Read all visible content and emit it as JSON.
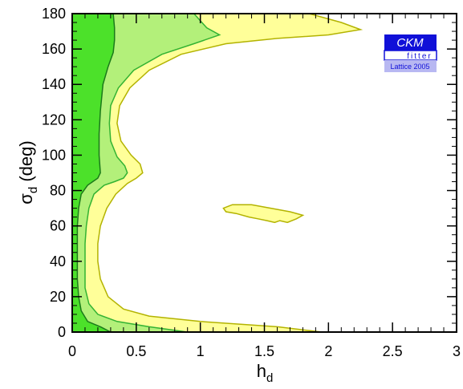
{
  "chart_data": {
    "type": "contour",
    "xlabel_main": "h",
    "xlabel_sub": "d",
    "ylabel_main": "σ",
    "ylabel_sub": "d",
    "ylabel_unit": "(deg)",
    "xlim": [
      0,
      3
    ],
    "ylim": [
      0,
      180
    ],
    "xticks": [
      0,
      0.5,
      1,
      1.5,
      2,
      2.5,
      3
    ],
    "xtick_labels": [
      "0",
      "0.5",
      "1",
      "1.5",
      "2",
      "2.5",
      "3"
    ],
    "yticks": [
      0,
      20,
      40,
      60,
      80,
      100,
      120,
      140,
      160,
      180
    ],
    "ytick_labels": [
      "0",
      "20",
      "40",
      "60",
      "80",
      "100",
      "120",
      "140",
      "160",
      "180"
    ],
    "colors": {
      "outer": "#ffff99",
      "middle": "#b3f07a",
      "inner": "#4ce12a",
      "outer_line": "#b3b300",
      "middle_line": "#33b333",
      "inner_line": "#1a7a1a"
    },
    "regions": [
      {
        "level": "outer",
        "points": [
          [
            0,
            0
          ],
          [
            1.95,
            0
          ],
          [
            1.6,
            3
          ],
          [
            1.0,
            6
          ],
          [
            0.6,
            9
          ],
          [
            0.4,
            13
          ],
          [
            0.28,
            20
          ],
          [
            0.22,
            30
          ],
          [
            0.2,
            40
          ],
          [
            0.2,
            50
          ],
          [
            0.22,
            60
          ],
          [
            0.27,
            70
          ],
          [
            0.34,
            78
          ],
          [
            0.43,
            84
          ],
          [
            0.5,
            87
          ],
          [
            0.55,
            90
          ],
          [
            0.53,
            95
          ],
          [
            0.46,
            100
          ],
          [
            0.38,
            108
          ],
          [
            0.35,
            118
          ],
          [
            0.37,
            128
          ],
          [
            0.45,
            138
          ],
          [
            0.6,
            148
          ],
          [
            0.85,
            157
          ],
          [
            1.2,
            163
          ],
          [
            1.6,
            166
          ],
          [
            2.0,
            168
          ],
          [
            2.25,
            171
          ],
          [
            2.1,
            175
          ],
          [
            1.85,
            180
          ],
          [
            0,
            180
          ]
        ]
      },
      {
        "level": "middle",
        "points": [
          [
            0,
            0
          ],
          [
            0.9,
            0
          ],
          [
            0.6,
            3
          ],
          [
            0.35,
            6
          ],
          [
            0.2,
            10
          ],
          [
            0.13,
            16
          ],
          [
            0.1,
            25
          ],
          [
            0.1,
            35
          ],
          [
            0.1,
            50
          ],
          [
            0.11,
            60
          ],
          [
            0.13,
            70
          ],
          [
            0.17,
            78
          ],
          [
            0.25,
            83
          ],
          [
            0.33,
            85
          ],
          [
            0.4,
            87
          ],
          [
            0.43,
            90
          ],
          [
            0.41,
            94
          ],
          [
            0.35,
            99
          ],
          [
            0.3,
            108
          ],
          [
            0.29,
            118
          ],
          [
            0.3,
            128
          ],
          [
            0.36,
            138
          ],
          [
            0.48,
            148
          ],
          [
            0.7,
            157
          ],
          [
            0.95,
            163
          ],
          [
            1.15,
            168
          ],
          [
            1.05,
            172
          ],
          [
            0.95,
            180
          ],
          [
            0,
            180
          ]
        ]
      },
      {
        "level": "inner",
        "points": [
          [
            0,
            0
          ],
          [
            0.3,
            0
          ],
          [
            0.22,
            3
          ],
          [
            0.12,
            6
          ],
          [
            0.07,
            12
          ],
          [
            0.05,
            20
          ],
          [
            0.04,
            30
          ],
          [
            0.04,
            45
          ],
          [
            0.04,
            60
          ],
          [
            0.05,
            70
          ],
          [
            0.07,
            78
          ],
          [
            0.12,
            83
          ],
          [
            0.2,
            87
          ],
          [
            0.22,
            90
          ],
          [
            0.21,
            100
          ],
          [
            0.21,
            112
          ],
          [
            0.22,
            125
          ],
          [
            0.24,
            140
          ],
          [
            0.28,
            150
          ],
          [
            0.32,
            158
          ],
          [
            0.33,
            165
          ],
          [
            0.33,
            172
          ],
          [
            0.32,
            180
          ],
          [
            0,
            180
          ]
        ]
      },
      {
        "level": "outer",
        "points": [
          [
            1.18,
            70
          ],
          [
            1.25,
            72
          ],
          [
            1.4,
            72
          ],
          [
            1.55,
            70
          ],
          [
            1.7,
            68
          ],
          [
            1.8,
            66
          ],
          [
            1.75,
            64
          ],
          [
            1.68,
            62
          ],
          [
            1.62,
            63
          ],
          [
            1.58,
            62
          ],
          [
            1.52,
            63
          ],
          [
            1.45,
            64
          ],
          [
            1.38,
            65
          ],
          [
            1.28,
            67
          ],
          [
            1.2,
            68
          ]
        ]
      }
    ]
  },
  "logo": {
    "title": "CKM",
    "subtitle": "fitter",
    "caption": "Lattice 2005",
    "colors": {
      "primary": "#1010d8",
      "light": "#b8b8f2"
    }
  }
}
